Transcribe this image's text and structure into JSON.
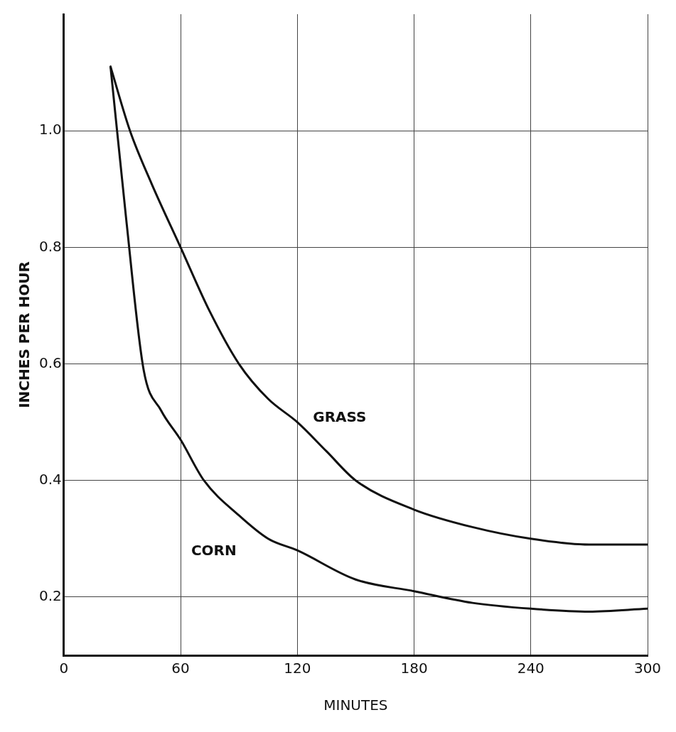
{
  "chart_data": {
    "type": "line",
    "xlabel": "MINUTES",
    "ylabel": "INCHES PER HOUR",
    "xlim": [
      0,
      300
    ],
    "xticks": [
      0,
      60,
      120,
      180,
      240,
      300
    ],
    "ylim": [
      0.1,
      1.2
    ],
    "yticks": [
      0.2,
      0.4,
      0.6,
      0.8,
      {
        "value": 1,
        "label": "1.0"
      }
    ],
    "grid": true,
    "legend": false,
    "marker": "none",
    "series": [
      {
        "name": "GRASS",
        "color": "#111111",
        "x": [
          24,
          34,
          45,
          60,
          75,
          90,
          105,
          120,
          135,
          150,
          180,
          210,
          240,
          270,
          300
        ],
        "values": [
          1.11,
          1.0,
          0.91,
          0.8,
          0.69,
          0.6,
          0.54,
          0.5,
          0.45,
          0.4,
          0.35,
          0.32,
          0.3,
          0.29,
          0.29
        ]
      },
      {
        "name": "CORN",
        "color": "#111111",
        "x": [
          24,
          32,
          41,
          50,
          60,
          72,
          90,
          105,
          120,
          150,
          180,
          210,
          240,
          270,
          300
        ],
        "values": [
          1.11,
          0.85,
          0.59,
          0.52,
          0.47,
          0.4,
          0.34,
          0.3,
          0.28,
          0.23,
          0.21,
          0.19,
          0.18,
          0.175,
          0.18
        ]
      }
    ]
  }
}
